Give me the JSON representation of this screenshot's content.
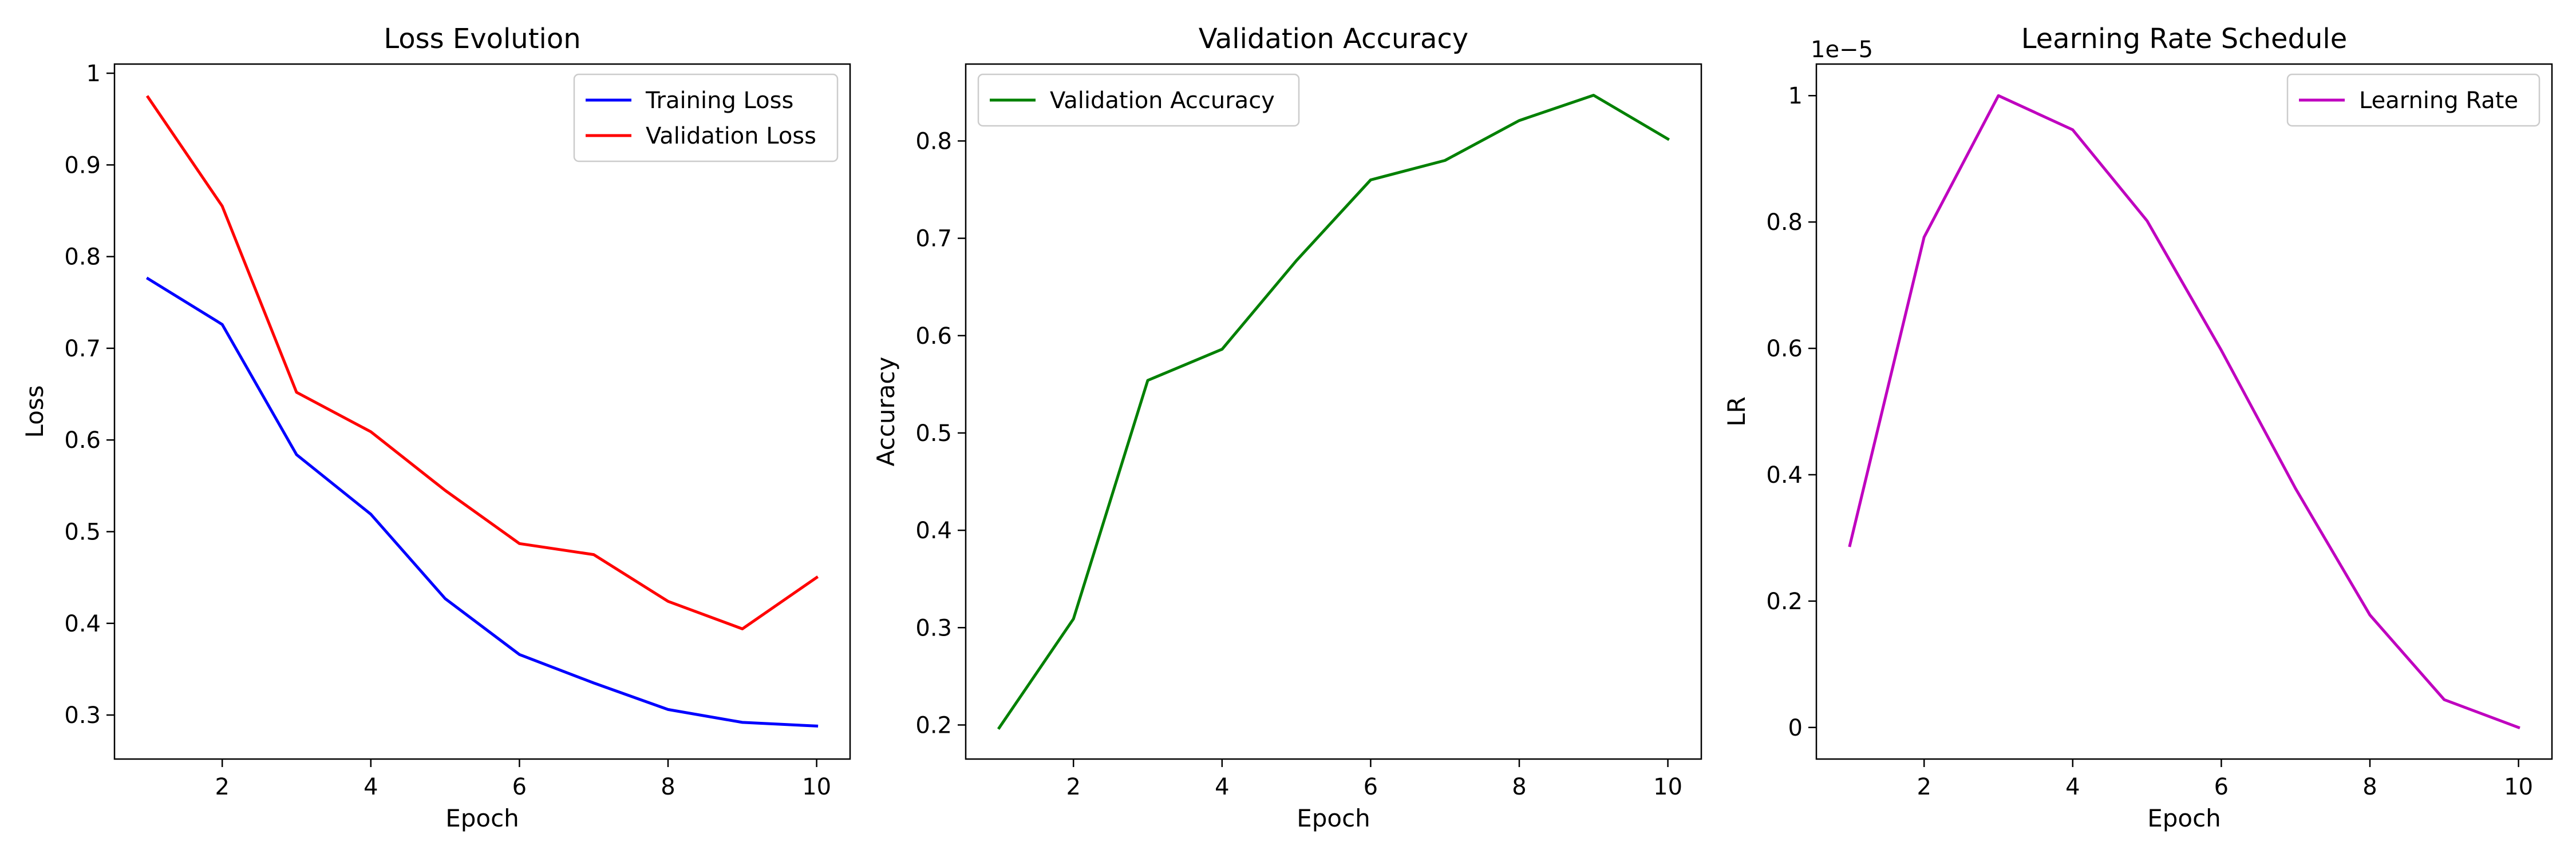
{
  "chart_data": [
    {
      "type": "line",
      "title": "Loss Evolution",
      "xlabel": "Epoch",
      "ylabel": "Loss",
      "xlim": [
        0.55,
        10.45
      ],
      "ylim": [
        0.252,
        1.01
      ],
      "xticks": [
        2,
        4,
        6,
        8,
        10
      ],
      "yticks": [
        0.3,
        0.4,
        0.5,
        0.6,
        0.7,
        0.8,
        0.9,
        1.0
      ],
      "grid": false,
      "legend_position": "top-right",
      "x": [
        1,
        2,
        3,
        4,
        5,
        6,
        7,
        8,
        9,
        10
      ],
      "series": [
        {
          "name": "Training Loss",
          "color": "#0000ff",
          "values": [
            0.776,
            0.726,
            0.584,
            0.519,
            0.427,
            0.366,
            0.335,
            0.306,
            0.292,
            0.288
          ]
        },
        {
          "name": "Validation Loss",
          "color": "#ff0000",
          "values": [
            0.974,
            0.855,
            0.652,
            0.609,
            0.545,
            0.487,
            0.475,
            0.424,
            0.394,
            0.45
          ]
        }
      ]
    },
    {
      "type": "line",
      "title": "Validation Accuracy",
      "xlabel": "Epoch",
      "ylabel": "Accuracy",
      "xlim": [
        0.55,
        10.45
      ],
      "ylim": [
        0.165,
        0.879
      ],
      "xticks": [
        2,
        4,
        6,
        8,
        10
      ],
      "yticks": [
        0.2,
        0.3,
        0.4,
        0.5,
        0.6,
        0.7,
        0.8
      ],
      "grid": false,
      "legend_position": "top-left",
      "x": [
        1,
        2,
        3,
        4,
        5,
        6,
        7,
        8,
        9,
        10
      ],
      "series": [
        {
          "name": "Validation Accuracy",
          "color": "#008000",
          "values": [
            0.197,
            0.309,
            0.554,
            0.586,
            0.677,
            0.76,
            0.78,
            0.821,
            0.847,
            0.802
          ]
        }
      ]
    },
    {
      "type": "line",
      "title": "Learning Rate Schedule",
      "xlabel": "Epoch",
      "ylabel": "LR",
      "offset_text": "1e−5",
      "xlim": [
        0.55,
        10.45
      ],
      "ylim": [
        -0.05,
        1.05
      ],
      "xticks": [
        2,
        4,
        6,
        8,
        10
      ],
      "yticks": [
        0.0,
        0.2,
        0.4,
        0.6,
        0.8,
        1.0
      ],
      "grid": false,
      "legend_position": "top-right",
      "x": [
        1,
        2,
        3,
        4,
        5,
        6,
        7,
        8,
        9,
        10
      ],
      "series": [
        {
          "name": "Learning Rate",
          "color": "#bf00bf",
          "values": [
            0.288,
            0.776,
            1.0,
            0.946,
            0.802,
            0.597,
            0.378,
            0.178,
            0.044,
            0.0
          ]
        }
      ]
    }
  ]
}
